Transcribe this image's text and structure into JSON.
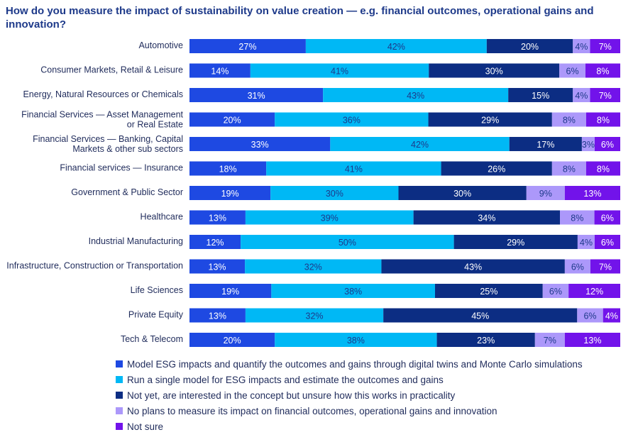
{
  "chart_data": {
    "type": "bar",
    "orientation": "horizontal",
    "stacked": true,
    "title": "How do you measure the impact of sustainability on value creation — e.g. financial outcomes, operational gains and innovation?",
    "categories": [
      [
        "Automotive"
      ],
      [
        "Consumer Markets, Retail & Leisure"
      ],
      [
        "Energy, Natural Resources or Chemicals"
      ],
      [
        "Financial Services — Asset Management",
        "or Real Estate"
      ],
      [
        "Financial Services — Banking, Capital",
        "Markets & other sub sectors"
      ],
      [
        "Financial services — Insurance"
      ],
      [
        "Government & Public Sector"
      ],
      [
        "Healthcare"
      ],
      [
        "Industrial Manufacturing"
      ],
      [
        "Infrastructure, Construction or Transportation"
      ],
      [
        "Life Sciences"
      ],
      [
        "Private Equity"
      ],
      [
        "Tech & Telecom"
      ]
    ],
    "series": [
      {
        "name": "Model ESG impacts and quantify the outcomes and gains through digital twins and Monte Carlo simulations",
        "color": "#1e49e2",
        "label_color": "#ffffff",
        "values": [
          27,
          14,
          31,
          20,
          33,
          18,
          19,
          13,
          12,
          13,
          19,
          13,
          20
        ]
      },
      {
        "name": "Run a single model for ESG impacts and estimate the outcomes and gains",
        "color": "#00b8f5",
        "label_color": "#1e3a8a",
        "values": [
          42,
          41,
          43,
          36,
          42,
          41,
          30,
          39,
          50,
          32,
          38,
          32,
          38
        ]
      },
      {
        "name": "Not yet, are interested in the concept but unsure how this works in practicality",
        "color": "#0c2d83",
        "label_color": "#ffffff",
        "values": [
          20,
          30,
          15,
          29,
          17,
          26,
          30,
          34,
          29,
          43,
          25,
          45,
          23
        ]
      },
      {
        "name": "No plans to measure its impact on financial outcomes, operational gains and innovation",
        "color": "#ac98fa",
        "label_color": "#1e3a8a",
        "values": [
          4,
          6,
          4,
          8,
          3,
          8,
          9,
          8,
          4,
          6,
          6,
          6,
          7
        ]
      },
      {
        "name": "Not sure",
        "color": "#7213ea",
        "label_color": "#ffffff",
        "values": [
          7,
          8,
          7,
          8,
          6,
          8,
          13,
          6,
          6,
          7,
          12,
          4,
          13
        ]
      }
    ],
    "value_suffix": "%",
    "legend_position": "bottom"
  }
}
